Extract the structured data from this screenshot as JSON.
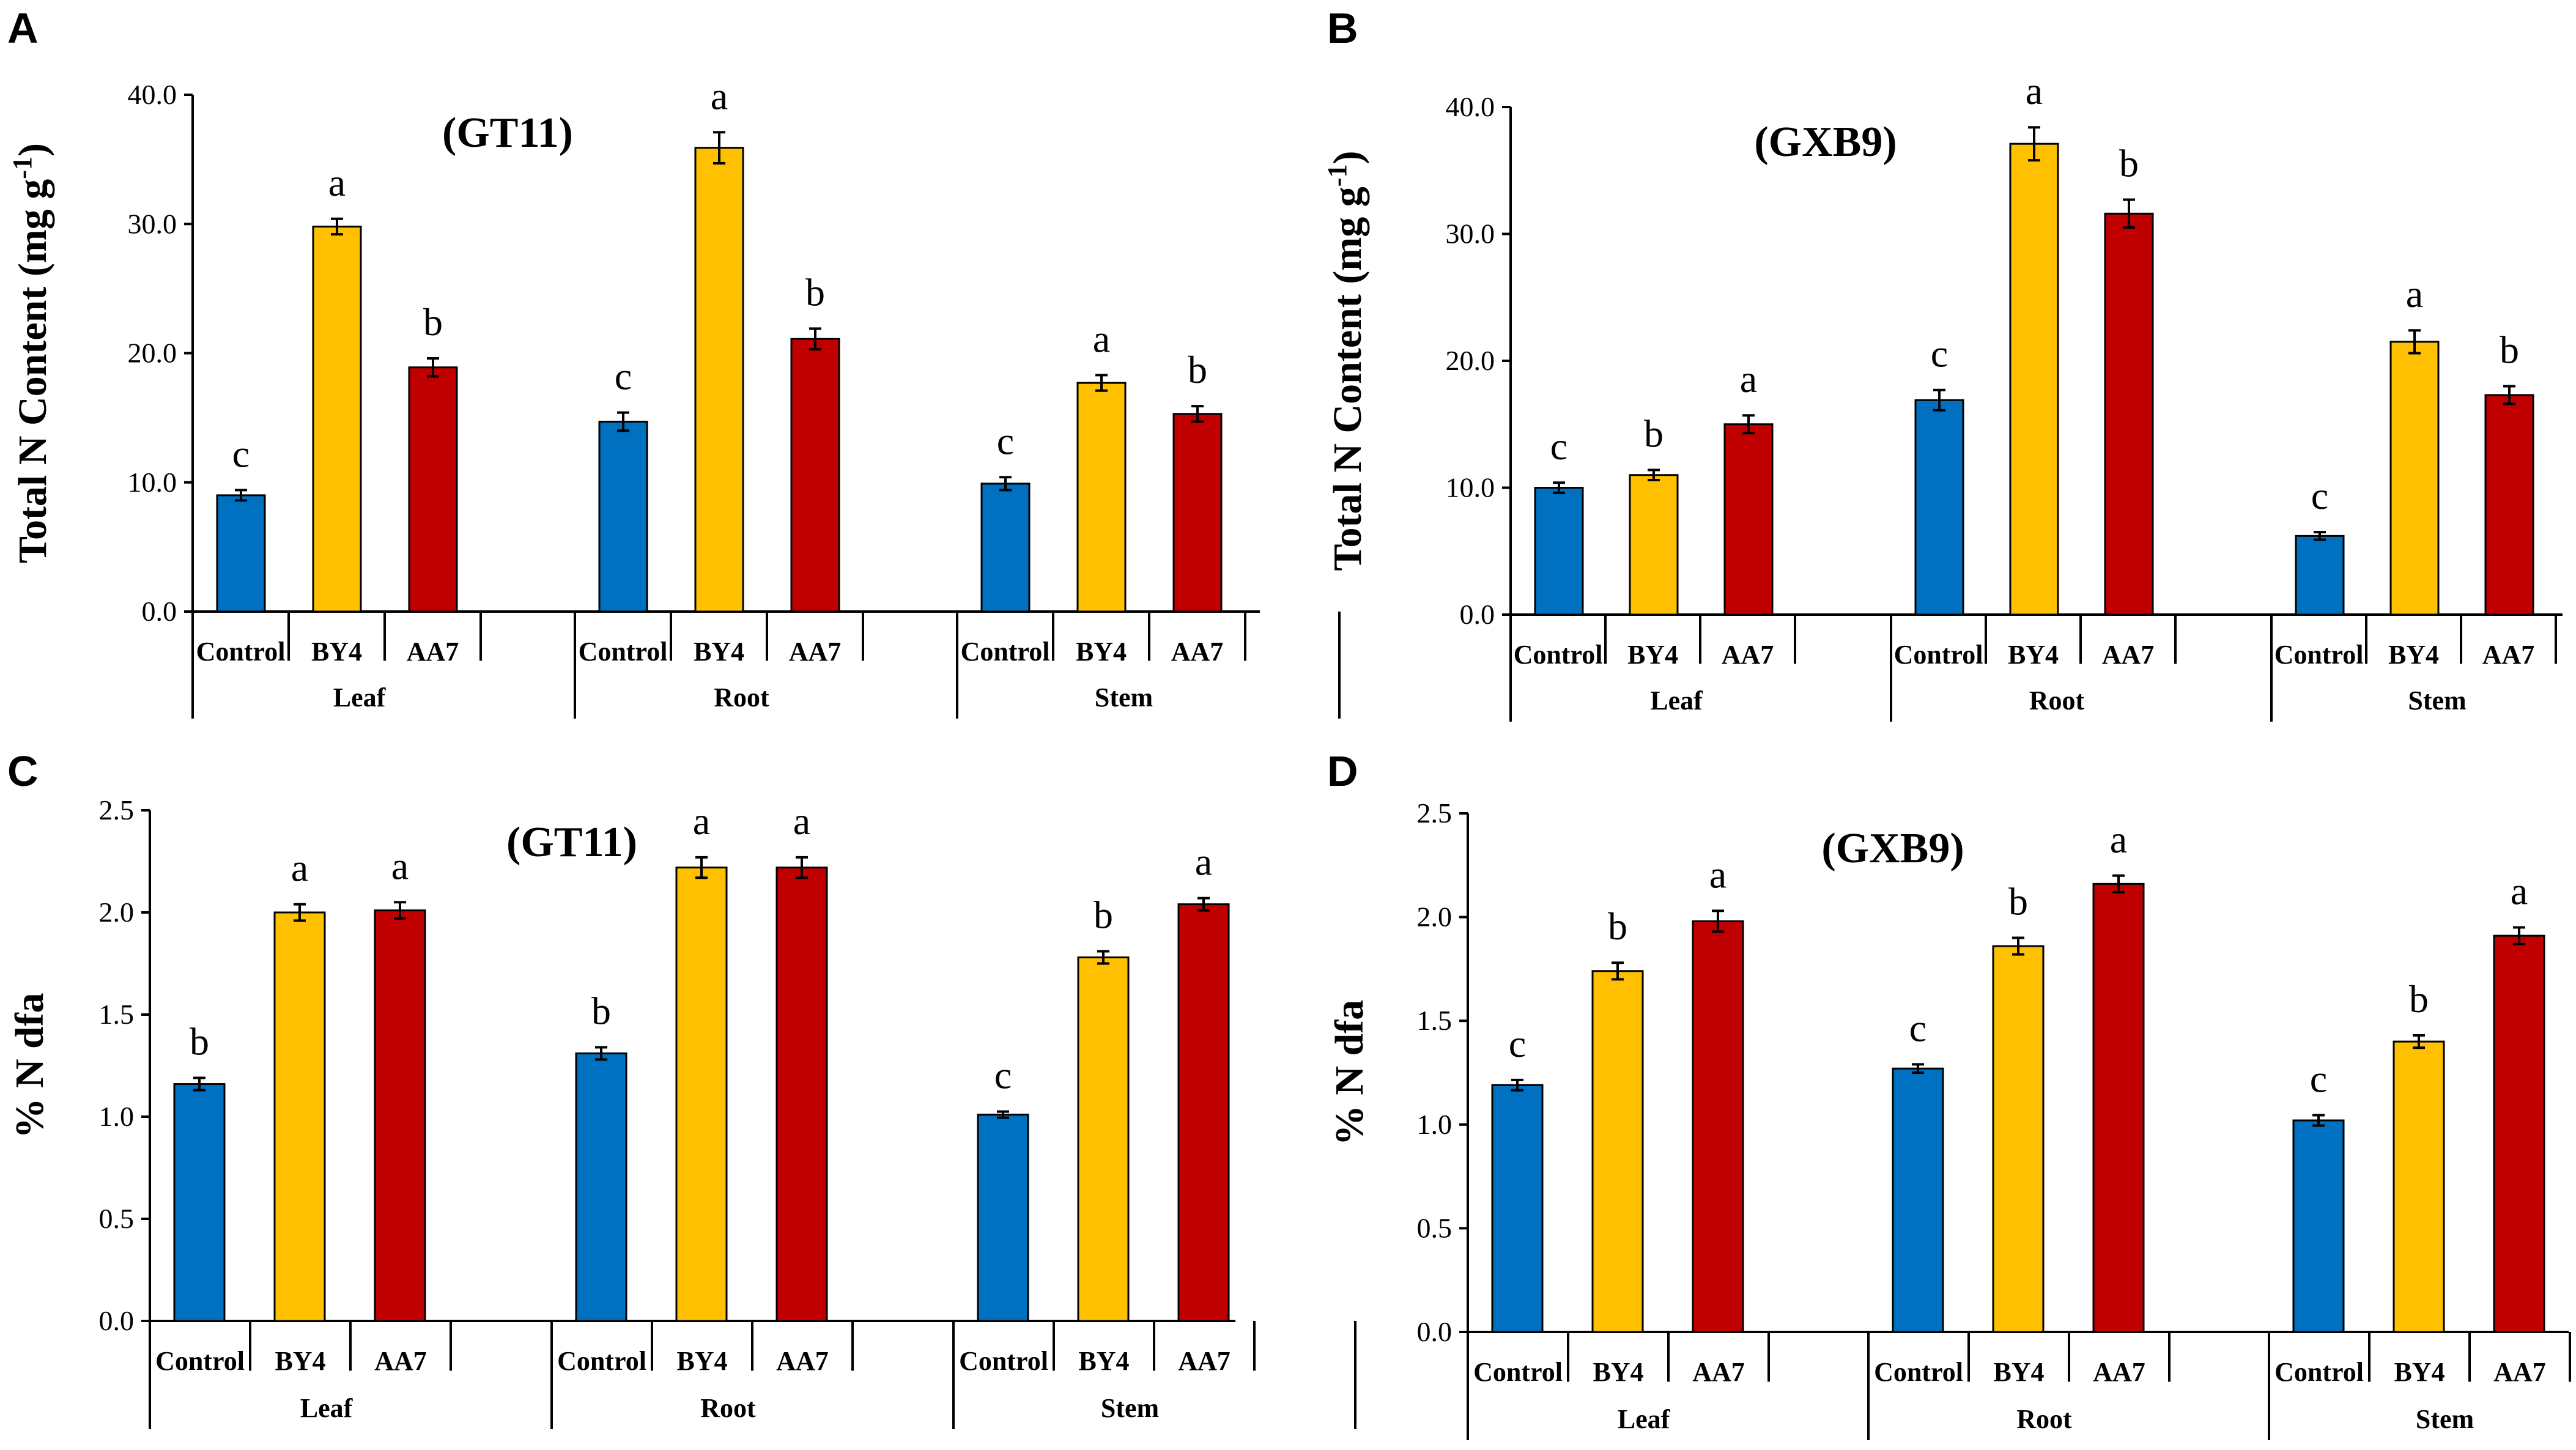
{
  "figure": {
    "colors": {
      "Control": "#0070C0",
      "BY4": "#FFC000",
      "AA7": "#C00000"
    }
  },
  "chart_data": [
    {
      "panel": "A",
      "type": "bar",
      "title": "(GT11)",
      "ylabel": "Total N Content (mg g-1)",
      "ylabel_main": "Total N Content (mg g",
      "ylabel_sup": "-1",
      "ylabel_end": ")",
      "ylim": [
        0,
        40
      ],
      "yticks": [
        "0.0",
        "10.0",
        "20.0",
        "30.0",
        "40.0"
      ],
      "groups": [
        "Leaf",
        "Root",
        "Stem"
      ],
      "categories": [
        "Control",
        "BY4",
        "AA7"
      ],
      "series": [
        {
          "name": "Control",
          "values": [
            9.0,
            14.7,
            9.9
          ],
          "errors": [
            0.4,
            0.7,
            0.5
          ],
          "letters": [
            "c",
            "c",
            "c"
          ]
        },
        {
          "name": "BY4",
          "values": [
            29.8,
            35.9,
            17.7
          ],
          "errors": [
            0.6,
            1.2,
            0.6
          ],
          "letters": [
            "a",
            "a",
            "a"
          ]
        },
        {
          "name": "AA7",
          "values": [
            18.9,
            21.1,
            15.3
          ],
          "errors": [
            0.7,
            0.8,
            0.6
          ],
          "letters": [
            "b",
            "b",
            "b"
          ]
        }
      ]
    },
    {
      "panel": "B",
      "type": "bar",
      "title": "(GXB9)",
      "ylabel": "Total N Content (mg g-1)",
      "ylabel_main": "Total N Content (mg g",
      "ylabel_sup": "-1",
      "ylabel_end": ")",
      "ylim": [
        0,
        40
      ],
      "yticks": [
        "0.0",
        "10.0",
        "20.0",
        "30.0",
        "40.0"
      ],
      "groups": [
        "Leaf",
        "Root",
        "Stem"
      ],
      "categories": [
        "Control",
        "BY4",
        "AA7"
      ],
      "series": [
        {
          "name": "Control",
          "values": [
            10.0,
            16.9,
            6.2
          ],
          "errors": [
            0.4,
            0.8,
            0.3
          ],
          "letters": [
            "c",
            "c",
            "c"
          ]
        },
        {
          "name": "BY4",
          "values": [
            11.0,
            37.1,
            21.5
          ],
          "errors": [
            0.4,
            1.3,
            0.9
          ],
          "letters": [
            "b",
            "a",
            "a"
          ]
        },
        {
          "name": "AA7",
          "values": [
            15.0,
            31.6,
            17.3
          ],
          "errors": [
            0.7,
            1.1,
            0.7
          ],
          "letters": [
            "a",
            "b",
            "b"
          ]
        }
      ]
    },
    {
      "panel": "C",
      "type": "bar",
      "title": "(GT11)",
      "ylabel": "% N dfa",
      "ylabel_main": "% N dfa",
      "ylabel_sup": "",
      "ylabel_end": "",
      "ylim": [
        0,
        2.5
      ],
      "yticks": [
        "0.0",
        "0.5",
        "1.0",
        "1.5",
        "2.0",
        "2.5"
      ],
      "groups": [
        "Leaf",
        "Root",
        "Stem"
      ],
      "categories": [
        "Control",
        "BY4",
        "AA7"
      ],
      "series": [
        {
          "name": "Control",
          "values": [
            1.16,
            1.31,
            1.01
          ],
          "errors": [
            0.03,
            0.03,
            0.015
          ],
          "letters": [
            "b",
            "b",
            "c"
          ]
        },
        {
          "name": "BY4",
          "values": [
            2.0,
            2.22,
            1.78
          ],
          "errors": [
            0.04,
            0.05,
            0.03
          ],
          "letters": [
            "a",
            "a",
            "b"
          ]
        },
        {
          "name": "AA7",
          "values": [
            2.01,
            2.22,
            2.04
          ],
          "errors": [
            0.04,
            0.05,
            0.03
          ],
          "letters": [
            "a",
            "a",
            "a"
          ]
        }
      ]
    },
    {
      "panel": "D",
      "type": "bar",
      "title": "(GXB9)",
      "ylabel": "% N dfa",
      "ylabel_main": "% N dfa",
      "ylabel_sup": "",
      "ylabel_end": "",
      "ylim": [
        0,
        2.5
      ],
      "yticks": [
        "0.0",
        "0.5",
        "1.0",
        "1.5",
        "2.0",
        "2.5"
      ],
      "groups": [
        "Leaf",
        "Root",
        "Stem"
      ],
      "categories": [
        "Control",
        "BY4",
        "AA7"
      ],
      "series": [
        {
          "name": "Control",
          "values": [
            1.19,
            1.27,
            1.02
          ],
          "errors": [
            0.025,
            0.02,
            0.025
          ],
          "letters": [
            "c",
            "c",
            "c"
          ]
        },
        {
          "name": "BY4",
          "values": [
            1.74,
            1.86,
            1.4
          ],
          "errors": [
            0.04,
            0.04,
            0.03
          ],
          "letters": [
            "b",
            "b",
            "b"
          ]
        },
        {
          "name": "AA7",
          "values": [
            1.98,
            2.16,
            1.91
          ],
          "errors": [
            0.05,
            0.04,
            0.04
          ],
          "letters": [
            "a",
            "a",
            "a"
          ]
        }
      ]
    }
  ]
}
